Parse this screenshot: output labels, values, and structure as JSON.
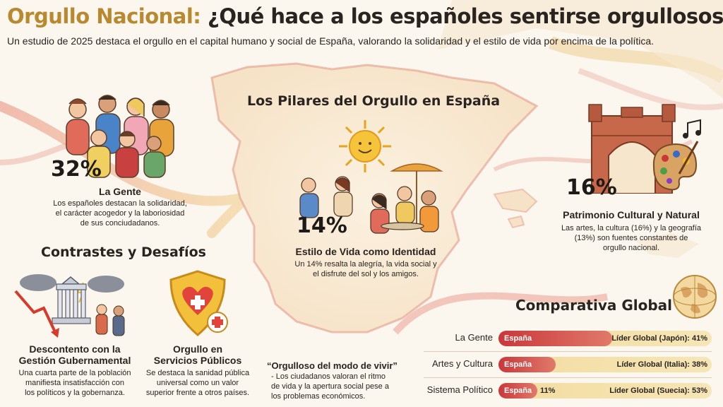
{
  "header": {
    "title_main": "Orgullo Nacional:",
    "title_rest": "¿Qué hace a los españoles sentirse orgullosos?",
    "subtitle": "Un estudio de 2025 destaca el orgullo en el capital humano y social de España, valorando la solidaridad y el estilo de vida por encima de la política."
  },
  "pillars": {
    "heading": "Los Pilares del Orgullo en España",
    "people": {
      "pct": "32%",
      "title": "La Gente",
      "text_lines": [
        "Los españoles destacan la solidaridad,",
        "el carácter acogedor y la laboriosidad",
        "de sus conciudadanos."
      ]
    },
    "lifestyle": {
      "pct": "14%",
      "title": "Estilo de Vida como Identidad",
      "text_lines": [
        "Un 14% resalta la alegría, la vida social y",
        "el disfrute del sol y los amigos."
      ]
    },
    "heritage": {
      "pct": "16%",
      "title": "Patrimonio Cultural y Natural",
      "text_lines": [
        "Las artes, la cultura (16%) y la geografía",
        "(13%) son fuentes constantes de",
        "orgullo nacional."
      ]
    }
  },
  "contrasts": {
    "heading": "Contrastes y Desafíos",
    "government": {
      "title_lines": [
        "Descontento con la",
        "Gestión Gubernamental"
      ],
      "text_lines": [
        "Una cuarta parte de la población",
        "manifiesta insatisfacción con",
        "los políticos y la gobernanza."
      ]
    },
    "services": {
      "title_lines": [
        "Orgullo en",
        "Servicios Públicos"
      ],
      "text_lines": [
        "Se destaca la sanidad pública",
        "universal como un valor",
        "superior frente a otros países."
      ]
    },
    "quote": {
      "title": "“Orgulloso del modo de vivir”",
      "text_lines": [
        "- Los ciudadanos valoran el ritmo",
        "de vida y la apertura social pese a",
        "los problemas económicos."
      ]
    }
  },
  "global": {
    "heading": "Comparativa Global",
    "spain_label": "España",
    "rows": [
      {
        "label": "La Gente",
        "spain_value": 32,
        "spain_pct": "",
        "leader": "Líder Global (Japón): 41%",
        "leader_value": 41
      },
      {
        "label": "Artes y Cultura",
        "spain_value": 16,
        "spain_pct": "",
        "leader": "Líder Global (Italia): 38%",
        "leader_value": 38
      },
      {
        "label": "Sistema Político",
        "spain_value": 11,
        "spain_pct": "11%",
        "leader": "Líder Global (Suecia): 53%",
        "leader_value": 53
      }
    ]
  },
  "colors": {
    "accent_gold": "#b8892e",
    "spain_red": "#c9373a",
    "leader_yellow": "#f2dca0"
  },
  "icons": [
    "people-group-icon",
    "sun-icon",
    "cafe-terrace-icon",
    "triumphal-arch-icon",
    "palette-icon",
    "music-notes-icon",
    "government-building-icon",
    "storm-cloud-icon",
    "down-arrow-icon",
    "shield-heart-icon",
    "globe-icon"
  ]
}
